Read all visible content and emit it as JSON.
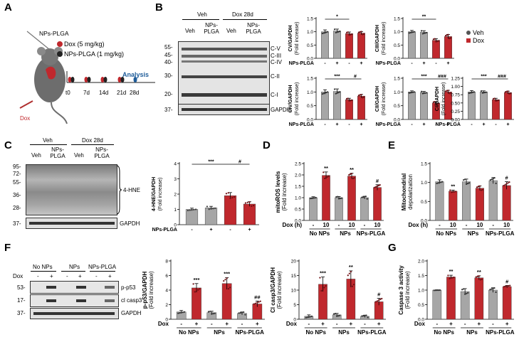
{
  "panels": {
    "A": {
      "label": "A",
      "particle": "NPs-PLGA",
      "legend": [
        {
          "text": "Dox (5 mg/kg)",
          "color": "#c0282d"
        },
        {
          "text": "NPs-PLGA (1 mg/kg)",
          "color": "#222222"
        }
      ],
      "timeline": [
        "t0",
        "7d",
        "14d",
        "21d",
        "28d"
      ],
      "analysis": "Analysis",
      "injection": "Dox"
    },
    "B": {
      "label": "B",
      "groups": [
        "Veh",
        "Dox 28d"
      ],
      "lanes": [
        "Veh",
        "NPs-PLGA",
        "Veh",
        "NPs-PLGA"
      ],
      "mw": [
        "55-",
        "45-",
        "40-",
        "30-",
        "20-",
        "37-"
      ],
      "bands": [
        "C-V",
        "C-III",
        "C-IV",
        "C-II",
        "C-I",
        "GAPDH"
      ]
    },
    "C": {
      "label": "C",
      "groups": [
        "Veh",
        "Dox 28d"
      ],
      "lanes": [
        "Veh",
        "NPs-PLGA",
        "Veh",
        "NPs-PLGA"
      ],
      "mw": [
        "95-",
        "72-",
        "55-",
        "36-",
        "28-",
        "37-"
      ],
      "bands": [
        "4-HNE",
        "GAPDH"
      ]
    },
    "D": {
      "label": "D"
    },
    "E": {
      "label": "E"
    },
    "F": {
      "label": "F",
      "groups": [
        "No NPs",
        "NPs",
        "NPs-PLGA"
      ],
      "dox_row": "Dox",
      "dox_signs": [
        "-",
        "+",
        "-",
        "+",
        "-",
        "+"
      ],
      "mw": [
        "53-",
        "17-",
        "37-"
      ],
      "bands": [
        "p-p53",
        "cl casp3",
        "GAPDH"
      ]
    },
    "G": {
      "label": "G"
    }
  },
  "legend_main": [
    {
      "text": "Veh",
      "color": "#555555"
    },
    {
      "text": "Dox",
      "color": "#c0282d"
    }
  ],
  "colors": {
    "veh": "#a6a6a6",
    "dox": "#c0282d",
    "veh_dot": "#444444"
  },
  "chart_data": [
    {
      "id": "B-CV",
      "type": "bar",
      "ylabel": "CV/GAPDH",
      "ylabel2": "(Fold increase)",
      "ylim": [
        0,
        1.5
      ],
      "yticks": [
        "0.0",
        "0.5",
        "1.0",
        "1.5"
      ],
      "xlabel": "NPs-PLGA",
      "signs": [
        "-",
        "+",
        "-",
        "+"
      ],
      "values": [
        1.0,
        1.03,
        0.93,
        0.95
      ],
      "errors": [
        0.07,
        0.07,
        0.06,
        0.06
      ],
      "colors": [
        "veh",
        "veh",
        "dox",
        "dox"
      ],
      "annot": [
        {
          "text": "*",
          "from": 0,
          "to": 2
        }
      ]
    },
    {
      "id": "B-CIII",
      "type": "bar",
      "ylabel": "CIII/GAPDH",
      "ylabel2": "(Fold increase)",
      "ylim": [
        0,
        1.5
      ],
      "yticks": [
        "0.0",
        "0.5",
        "1.0",
        "1.5"
      ],
      "xlabel": "NPs-PLGA",
      "signs": [
        "-",
        "+",
        "-",
        "+"
      ],
      "values": [
        1.0,
        0.98,
        0.68,
        0.82
      ],
      "errors": [
        0.05,
        0.06,
        0.06,
        0.08
      ],
      "colors": [
        "veh",
        "veh",
        "dox",
        "dox"
      ],
      "annot": [
        {
          "text": "**",
          "from": 0,
          "to": 2
        }
      ]
    },
    {
      "id": "B-CIV",
      "type": "bar",
      "ylabel": "CIV/GAPDH",
      "ylabel2": "(Fold increase)",
      "ylim": [
        0,
        1.5
      ],
      "yticks": [
        "0.0",
        "0.5",
        "1.0",
        "1.5"
      ],
      "xlabel": "NPs-PLGA",
      "signs": [
        "-",
        "+",
        "-",
        "+"
      ],
      "values": [
        1.0,
        1.02,
        0.72,
        0.85
      ],
      "errors": [
        0.08,
        0.09,
        0.05,
        0.06
      ],
      "colors": [
        "veh",
        "veh",
        "dox",
        "dox"
      ],
      "annot": [
        {
          "text": "***",
          "from": 0,
          "to": 2
        },
        {
          "text": "#",
          "from": 2,
          "to": 3
        }
      ]
    },
    {
      "id": "B-CII",
      "type": "bar",
      "ylabel": "CII/GAPDH",
      "ylabel2": "(Fold increase)",
      "ylim": [
        0,
        1.5
      ],
      "yticks": [
        "0.0",
        "0.5",
        "1.0",
        "1.5"
      ],
      "xlabel": "NPs-PLGA",
      "signs": [
        "-",
        "+",
        "-",
        "+"
      ],
      "values": [
        1.0,
        0.98,
        0.6,
        1.0
      ],
      "errors": [
        0.04,
        0.04,
        0.05,
        0.06
      ],
      "colors": [
        "veh",
        "veh",
        "dox",
        "dox"
      ],
      "annot": [
        {
          "text": "***",
          "from": 0,
          "to": 2
        },
        {
          "text": "###",
          "from": 2,
          "to": 3
        }
      ]
    },
    {
      "id": "B-CI",
      "type": "bar",
      "ylabel": "CI/GAPDH",
      "ylabel2": "(Fold increase)",
      "ylim": [
        0,
        1.5
      ],
      "yticks": [
        "0.00",
        "0.25",
        "0.50",
        "0.75",
        "1.00",
        "1.25"
      ],
      "xlabel": "NPs-PLGA",
      "signs": [
        "-",
        "+",
        "-",
        "+"
      ],
      "values": [
        1.0,
        1.0,
        0.72,
        0.98
      ],
      "errors": [
        0.05,
        0.04,
        0.05,
        0.05
      ],
      "colors": [
        "veh",
        "veh",
        "dox",
        "dox"
      ],
      "annot": [
        {
          "text": "***",
          "from": 0,
          "to": 2
        },
        {
          "text": "###",
          "from": 2,
          "to": 3
        }
      ]
    },
    {
      "id": "C-4HNE",
      "type": "bar",
      "ylabel": "4-HNE/GAPDH",
      "ylabel2": "(Fold increase)",
      "ylim": [
        0,
        4
      ],
      "yticks": [
        "0",
        "1",
        "2",
        "3",
        "4"
      ],
      "xlabel": "NPs-PLGA",
      "signs": [
        "-",
        "+",
        "-",
        "+"
      ],
      "values": [
        1.0,
        1.1,
        1.9,
        1.35
      ],
      "errors": [
        0.08,
        0.1,
        0.2,
        0.15
      ],
      "colors": [
        "veh",
        "veh",
        "dox",
        "dox"
      ],
      "annot": [
        {
          "text": "***",
          "from": 0,
          "to": 2
        },
        {
          "text": "#",
          "from": 2,
          "to": 3
        }
      ]
    },
    {
      "id": "D-mitoROS",
      "type": "bar",
      "ylabel": "mitoROS levels",
      "ylabel2": "(Fold increase)",
      "ylim": [
        0,
        2.5
      ],
      "yticks": [
        "0.0",
        "0.5",
        "1.0",
        "1.5",
        "2.0",
        "2.5"
      ],
      "xlabel": "Dox (h)",
      "signs": [
        "-",
        "10",
        "-",
        "10",
        "-",
        "10"
      ],
      "groups": [
        "No NPs",
        "NPs",
        "NPs-PLGA"
      ],
      "values": [
        1.0,
        1.98,
        1.0,
        1.95,
        1.0,
        1.45
      ],
      "errors": [
        0.04,
        0.15,
        0.05,
        0.12,
        0.06,
        0.12
      ],
      "colors": [
        "veh",
        "dox",
        "veh",
        "dox",
        "veh",
        "dox"
      ],
      "marks": [
        "",
        "**",
        "",
        "**",
        "",
        "#"
      ]
    },
    {
      "id": "E-depol",
      "type": "bar",
      "ylabel": "Mitochondrial",
      "ylabel2": "depolarization",
      "ylim": [
        0,
        1.5
      ],
      "yticks": [
        "0.0",
        "0.5",
        "1.0",
        "1.5"
      ],
      "xlabel": "Dox (h)",
      "signs": [
        "-",
        "10",
        "-",
        "10",
        "-",
        "10"
      ],
      "groups": [
        "No NPs",
        "NPs",
        "NPs-PLGA"
      ],
      "values": [
        1.02,
        0.77,
        1.02,
        0.85,
        1.05,
        0.92
      ],
      "errors": [
        0.05,
        0.03,
        0.07,
        0.06,
        0.08,
        0.1
      ],
      "colors": [
        "veh",
        "dox",
        "veh",
        "dox",
        "veh",
        "dox"
      ],
      "marks": [
        "",
        "**",
        "",
        "",
        "",
        "#"
      ]
    },
    {
      "id": "F-pp53",
      "type": "bar",
      "ylabel": "p-p53/GAPDH",
      "ylabel2": "(Fold increase)",
      "ylim": [
        0,
        8
      ],
      "yticks": [
        "0",
        "2",
        "4",
        "6",
        "8"
      ],
      "xlabel": "Dox",
      "signs": [
        "-",
        "+",
        "-",
        "+",
        "-",
        "+"
      ],
      "groups": [
        "No NPs",
        "NPs",
        "NPs-PLGA"
      ],
      "values": [
        1.0,
        4.3,
        0.9,
        4.9,
        0.8,
        2.1
      ],
      "errors": [
        0.2,
        0.6,
        0.2,
        0.8,
        0.2,
        0.4
      ],
      "colors": [
        "veh",
        "dox",
        "veh",
        "dox",
        "veh",
        "dox"
      ],
      "marks": [
        "",
        "***",
        "",
        "***",
        "",
        "##"
      ]
    },
    {
      "id": "F-casp3",
      "type": "bar",
      "ylabel": "Cl casp3/GAPDH",
      "ylabel2": "(Fold increase)",
      "ylim": [
        0,
        20
      ],
      "yticks": [
        "0",
        "5",
        "10",
        "15",
        "20"
      ],
      "xlabel": "Dox",
      "signs": [
        "-",
        "+",
        "-",
        "+",
        "-",
        "+"
      ],
      "groups": [
        "No NPs",
        "NPs",
        "NPs-PLGA"
      ],
      "values": [
        1.0,
        12.0,
        1.5,
        13.8,
        1.0,
        6.0
      ],
      "errors": [
        0.5,
        2.5,
        0.5,
        2.8,
        0.4,
        1.2
      ],
      "colors": [
        "veh",
        "dox",
        "veh",
        "dox",
        "veh",
        "dox"
      ],
      "marks": [
        "",
        "***",
        "",
        "**",
        "",
        "#"
      ]
    },
    {
      "id": "G-casp3act",
      "type": "bar",
      "ylabel": "Caspase 3 activity",
      "ylabel2": "(Fold increase)",
      "ylim": [
        0,
        2.0
      ],
      "yticks": [
        "0.0",
        "0.5",
        "1.0",
        "1.5",
        "2.0"
      ],
      "xlabel": "Dox",
      "signs": [
        "-",
        "+",
        "-",
        "+",
        "-",
        "+"
      ],
      "groups": [
        "No NPs",
        "NPs",
        "NPs-PLGA"
      ],
      "values": [
        1.0,
        1.45,
        0.95,
        1.42,
        1.0,
        1.12
      ],
      "errors": [
        0.01,
        0.06,
        0.1,
        0.07,
        0.08,
        0.04
      ],
      "colors": [
        "veh",
        "dox",
        "veh",
        "dox",
        "veh",
        "dox"
      ],
      "marks": [
        "",
        "**",
        "",
        "**",
        "",
        "#"
      ]
    }
  ]
}
